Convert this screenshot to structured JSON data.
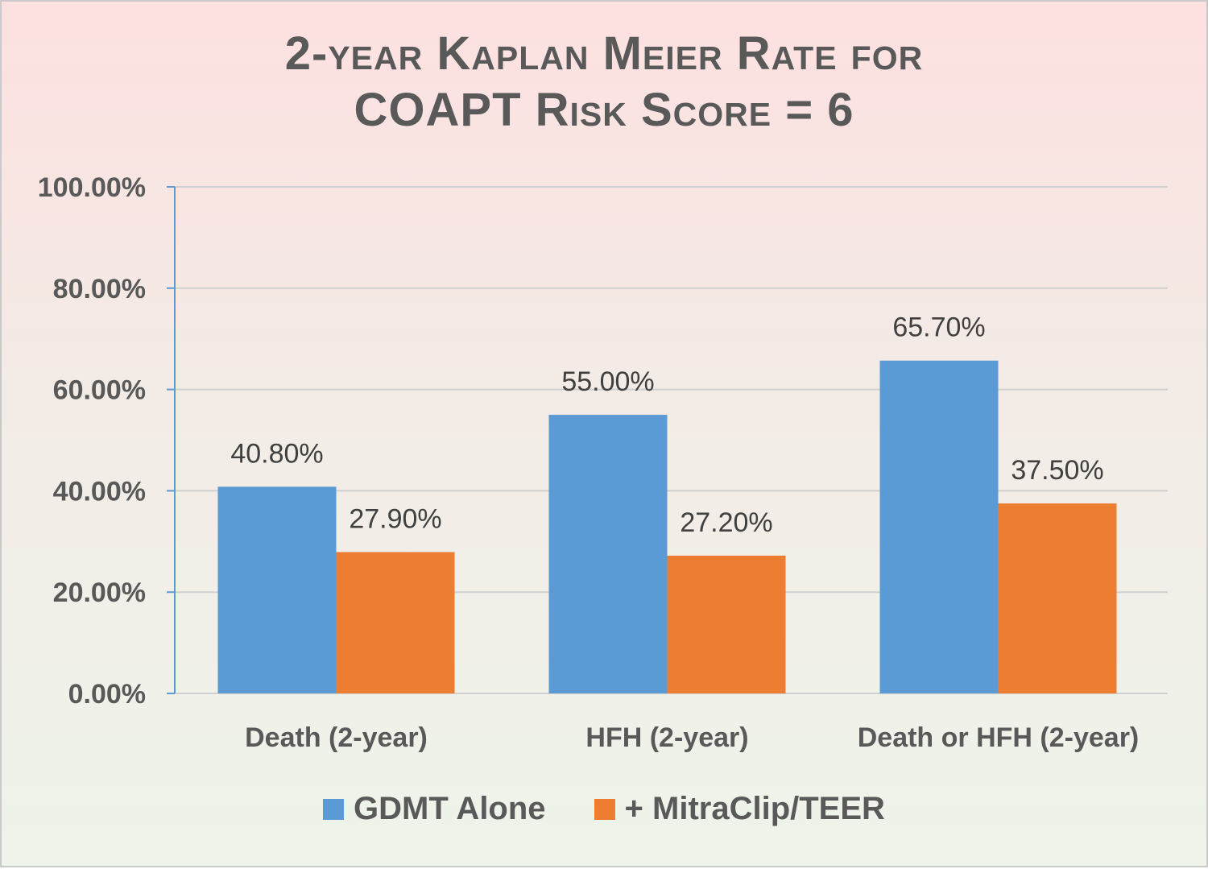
{
  "chart_data": {
    "type": "bar",
    "title_line1": "2-year Kaplan Meier Rate for",
    "title_line2": "COAPT Risk Score = 6",
    "categories": [
      "Death (2-year)",
      "HFH (2-year)",
      "Death or HFH (2-year)"
    ],
    "series": [
      {
        "name": "GDMT Alone",
        "values": [
          40.8,
          55.0,
          65.7
        ],
        "labels": [
          "40.80%",
          "55.00%",
          "65.70%"
        ],
        "color": "#5b9bd5"
      },
      {
        "name": "+ MitraClip/TEER",
        "values": [
          27.9,
          27.2,
          37.5
        ],
        "labels": [
          "27.90%",
          "27.20%",
          "37.50%"
        ],
        "color": "#ed7d31"
      }
    ],
    "ylim": [
      0,
      100
    ],
    "yticks": [
      0,
      20,
      40,
      60,
      80,
      100
    ],
    "ytick_labels": [
      "0.00%",
      "20.00%",
      "40.00%",
      "60.00%",
      "80.00%",
      "100.00%"
    ],
    "grid": true,
    "legend_position": "bottom"
  },
  "colors": {
    "axis": "#5b9bd5",
    "gridline": "#d0d0d0"
  }
}
